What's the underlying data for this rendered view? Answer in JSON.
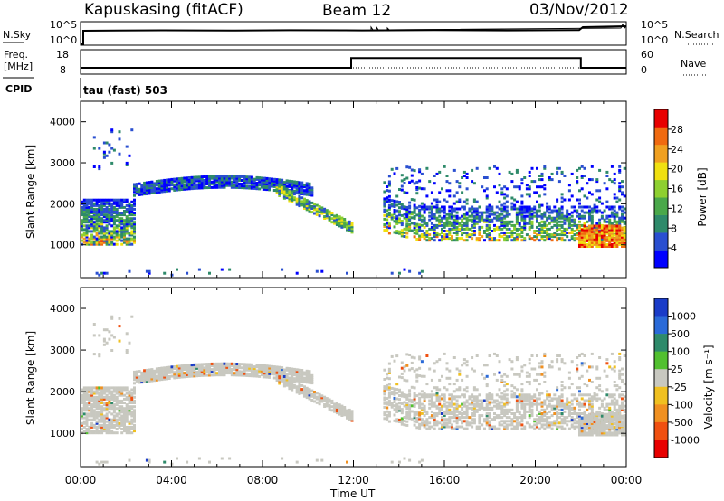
{
  "header": {
    "title": "Kapuskasing (fitACF)",
    "beam": "Beam 12",
    "date": "03/Nov/2012"
  },
  "panels": {
    "noise": {
      "left_label": "N.Sky",
      "right_label": "N.Search",
      "left_ticks": [
        "10^5",
        "10^0"
      ],
      "right_ticks": [
        "10^5",
        "10^0"
      ]
    },
    "freq": {
      "left_label_1": "Freq.",
      "left_label_2": "[MHz]",
      "right_label": "Nave",
      "left_ticks": [
        "18",
        "8"
      ],
      "right_ticks": [
        "60",
        "0"
      ]
    },
    "cpid": {
      "label": "CPID",
      "mode": "tau (fast) 503"
    }
  },
  "colors": {
    "power_scale": [
      "#0000ff",
      "#2a4fd0",
      "#2e8a6a",
      "#4aa84a",
      "#8ed030",
      "#f0e010",
      "#f0a020",
      "#f06a10",
      "#e80000"
    ],
    "velocity_scale": [
      "#1a3cc8",
      "#2a6ad8",
      "#2e8a6a",
      "#52c030",
      "#c8c8c0",
      "#f0c020",
      "#f09020",
      "#f05010",
      "#e80000"
    ],
    "ground_scatter": "#c8c8c0"
  },
  "chart_data": [
    {
      "type": "heatmap",
      "name": "power",
      "xlabel": "",
      "ylabel": "Slant Range [km]",
      "xlim": [
        0,
        24
      ],
      "ylim": [
        200,
        4500
      ],
      "y_ticks": [
        1000,
        2000,
        3000,
        4000
      ],
      "colorbar_label": "Power [dB]",
      "colorbar_ticks": [
        "28",
        "24",
        "20",
        "16",
        "12",
        "8",
        "4"
      ],
      "scatter_regions": [
        {
          "x": [
            0.0,
            2.5
          ],
          "y": [
            900,
            2100
          ],
          "level": "mixed"
        },
        {
          "x": [
            2.5,
            10.0
          ],
          "y": [
            2100,
            2700
          ],
          "level": "low"
        },
        {
          "x": [
            10.0,
            12.0
          ],
          "y": [
            1400,
            2300
          ],
          "level": "mid"
        },
        {
          "x": [
            13.3,
            24.0
          ],
          "y": [
            1100,
            3000
          ],
          "level": "mixed"
        },
        {
          "x": [
            22.0,
            24.0
          ],
          "y": [
            900,
            1500
          ],
          "level": "high"
        }
      ]
    },
    {
      "type": "heatmap",
      "name": "velocity",
      "xlabel": "Time UT",
      "ylabel": "Slant Range [km]",
      "xlim": [
        0,
        24
      ],
      "ylim": [
        200,
        4500
      ],
      "x_ticks": [
        "00:00",
        "04:00",
        "08:00",
        "12:00",
        "16:00",
        "20:00",
        "00:00"
      ],
      "y_ticks": [
        1000,
        2000,
        3000,
        4000
      ],
      "colorbar_label": "Velocity [m s⁻¹]",
      "colorbar_ticks": [
        "1000",
        "500",
        "100",
        "25",
        "-25",
        "-100",
        "-500",
        "-1000"
      ]
    },
    {
      "type": "line",
      "name": "frequency",
      "x": [
        0,
        11.9,
        11.9,
        22.0,
        22.0,
        24
      ],
      "y": [
        10.6,
        10.6,
        15.3,
        15.3,
        10.6,
        10.6
      ],
      "ylim": [
        8,
        18
      ]
    }
  ]
}
